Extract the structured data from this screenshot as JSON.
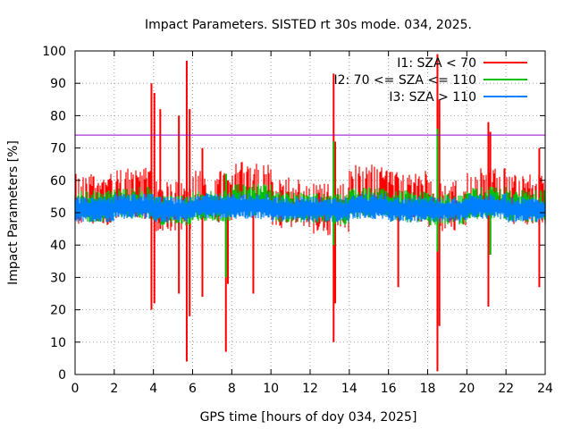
{
  "chart_data": {
    "type": "line",
    "title": "Impact Parameters. SISTED rt 30s mode. 034, 2025.",
    "xlabel": "GPS time [hours of doy 034, 2025]",
    "ylabel": "Impact Parameters [%]",
    "xlim": [
      0,
      24
    ],
    "ylim": [
      0,
      100
    ],
    "xticks": [
      0,
      2,
      4,
      6,
      8,
      10,
      12,
      14,
      16,
      18,
      20,
      22,
      24
    ],
    "yticks": [
      0,
      10,
      20,
      30,
      40,
      50,
      60,
      70,
      80,
      90,
      100
    ],
    "grid": true,
    "legend_position": "top-right",
    "threshold": {
      "value": 74,
      "color": "#9400d3"
    },
    "series": [
      {
        "name": "I1: SZA < 70",
        "color": "#ff0000",
        "spikes": [
          {
            "x": 3.9,
            "min": 20,
            "max": 90
          },
          {
            "x": 4.05,
            "min": 22,
            "max": 87
          },
          {
            "x": 4.35,
            "min": 45,
            "max": 82
          },
          {
            "x": 5.3,
            "min": 25,
            "max": 80
          },
          {
            "x": 5.7,
            "min": 4,
            "max": 97
          },
          {
            "x": 5.85,
            "min": 18,
            "max": 82
          },
          {
            "x": 6.5,
            "min": 24,
            "max": 70
          },
          {
            "x": 7.7,
            "min": 7,
            "max": 62
          },
          {
            "x": 7.8,
            "min": 28,
            "max": 60
          },
          {
            "x": 9.1,
            "min": 25,
            "max": 60
          },
          {
            "x": 13.2,
            "min": 10,
            "max": 93
          },
          {
            "x": 13.28,
            "min": 22,
            "max": 72
          },
          {
            "x": 16.5,
            "min": 27,
            "max": 59
          },
          {
            "x": 18.5,
            "min": 1,
            "max": 99
          },
          {
            "x": 18.6,
            "min": 15,
            "max": 85
          },
          {
            "x": 21.1,
            "min": 21,
            "max": 78
          },
          {
            "x": 21.2,
            "min": 37,
            "max": 75
          },
          {
            "x": 23.7,
            "min": 27,
            "max": 70
          }
        ],
        "base": {
          "center": 52,
          "spread": 8
        },
        "values": [
          54,
          56,
          52,
          55,
          58,
          53,
          51,
          57,
          55,
          52,
          56,
          54,
          53
        ]
      },
      {
        "name": "I2: 70 <= SZA <= 110",
        "color": "#00c000",
        "spikes": [
          {
            "x": 7.7,
            "min": 30,
            "max": 62
          },
          {
            "x": 13.2,
            "min": 40,
            "max": 72
          },
          {
            "x": 18.5,
            "min": 38,
            "max": 76
          },
          {
            "x": 21.2,
            "min": 37,
            "max": 58
          }
        ],
        "base": {
          "center": 52,
          "spread": 5
        },
        "values": [
          52,
          53,
          51,
          52,
          54,
          52,
          51,
          53,
          52,
          51,
          53,
          52,
          52
        ]
      },
      {
        "name": "I3: SZA > 110",
        "color": "#0080ff",
        "spikes": [],
        "base": {
          "center": 52,
          "spread": 4
        },
        "values": [
          51,
          52,
          51,
          52,
          52,
          51,
          51,
          52,
          51,
          51,
          52,
          51,
          51
        ]
      }
    ]
  }
}
